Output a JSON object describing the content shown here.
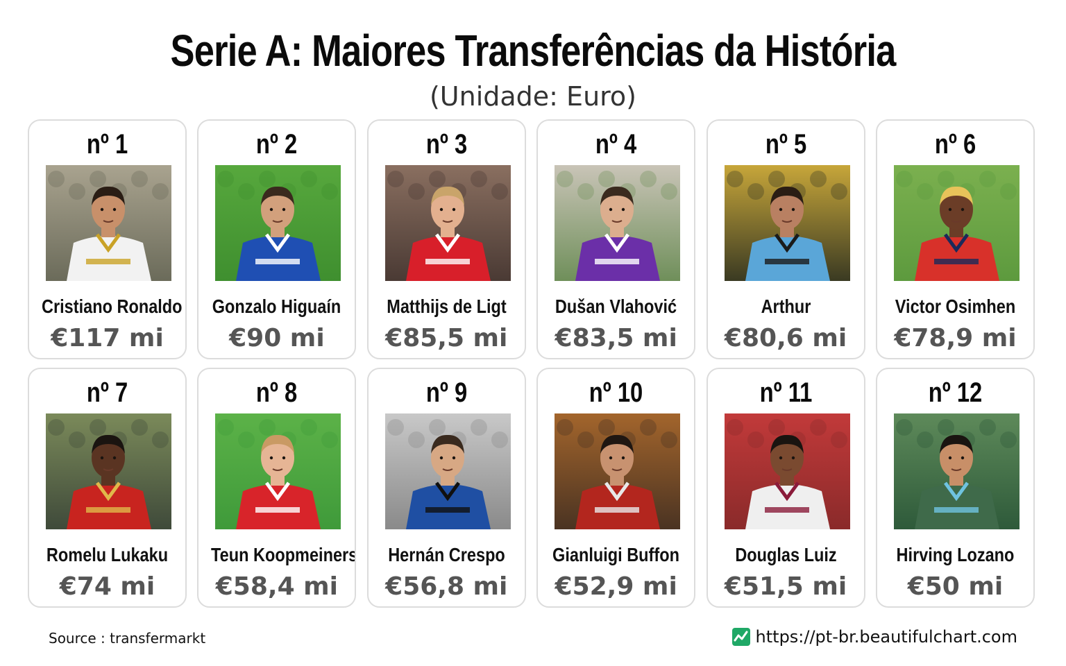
{
  "title": "Serie A: Maiores Transferências da História",
  "subtitle": "(Unidade: Euro)",
  "cards": [
    {
      "rank": "nº 1",
      "name": "Cristiano Ronaldo",
      "value": "€117 mi",
      "jersey": "#f2f2f2",
      "trim": "#c9a227",
      "skin": "#c8906a",
      "hair": "#2a1d14",
      "bg": "#6b6b5a",
      "bg2": "#a9a38f"
    },
    {
      "rank": "nº 2",
      "name": "Gonzalo Higuaín",
      "value": "€90 mi",
      "jersey": "#1f4fb3",
      "trim": "#ffffff",
      "skin": "#d2a07c",
      "hair": "#3a2a1e",
      "bg": "#3f8f2f",
      "bg2": "#57a83d"
    },
    {
      "rank": "nº 3",
      "name": "Matthijs de Ligt",
      "value": "€85,5 mi",
      "jersey": "#d81f2a",
      "trim": "#ffffff",
      "skin": "#e3b08f",
      "hair": "#c9a46a",
      "bg": "#4a3a34",
      "bg2": "#8a6f60"
    },
    {
      "rank": "nº 4",
      "name": "Dušan Vlahović",
      "value": "€83,5 mi",
      "jersey": "#6b2fa8",
      "trim": "#ffffff",
      "skin": "#dcae8e",
      "hair": "#3a2a1e",
      "bg": "#6f8f5a",
      "bg2": "#c9c4b7"
    },
    {
      "rank": "nº 5",
      "name": "Arthur",
      "value": "€80,6 mi",
      "jersey": "#5aa6d8",
      "trim": "#1b1b1b",
      "skin": "#b98062",
      "hair": "#2a1d14",
      "bg": "#3a3a22",
      "bg2": "#c7a63a"
    },
    {
      "rank": "nº 6",
      "name": "Victor Osimhen",
      "value": "€78,9 mi",
      "jersey": "#d8312a",
      "trim": "#1a2a5a",
      "skin": "#6b3d27",
      "hair": "#e8c35a",
      "bg": "#5d9a3e",
      "bg2": "#7bb04f"
    },
    {
      "rank": "nº 7",
      "name": "Romelu Lukaku",
      "value": "€74 mi",
      "jersey": "#c8241f",
      "trim": "#e1b84a",
      "skin": "#5a3422",
      "hair": "#1a1410",
      "bg": "#3f4a3a",
      "bg2": "#7b8a5a"
    },
    {
      "rank": "nº 8",
      "name": "Teun Koopmeiners",
      "value": "€58,4 mi",
      "jersey": "#d8242a",
      "trim": "#ffffff",
      "skin": "#e6b595",
      "hair": "#c99a64",
      "bg": "#3f9a3a",
      "bg2": "#5cb248"
    },
    {
      "rank": "nº 9",
      "name": "Hernán Crespo",
      "value": "€56,8 mi",
      "jersey": "#1f4fa3",
      "trim": "#101010",
      "skin": "#d7a884",
      "hair": "#3a2a1e",
      "bg": "#8a8a8a",
      "bg2": "#c8c8c8"
    },
    {
      "rank": "nº 10",
      "name": "Gianluigi Buffon",
      "value": "€52,9 mi",
      "jersey": "#b3261e",
      "trim": "#e8e8e8",
      "skin": "#c89270",
      "hair": "#1f1712",
      "bg": "#4a3322",
      "bg2": "#a3652c"
    },
    {
      "rank": "nº 11",
      "name": "Douglas Luiz",
      "value": "€51,5 mi",
      "jersey": "#efefef",
      "trim": "#8a1b3a",
      "skin": "#7a4a30",
      "hair": "#1a1410",
      "bg": "#8a2a2a",
      "bg2": "#c23a3a"
    },
    {
      "rank": "nº 12",
      "name": "Hirving Lozano",
      "value": "€50 mi",
      "jersey": "#3f6a4a",
      "trim": "#6fc3e0",
      "skin": "#c88f68",
      "hair": "#1a1410",
      "bg": "#2e5a3a",
      "bg2": "#5e8a5a"
    }
  ],
  "footer": {
    "source": "Source : transfermarkt",
    "brand_url": "https://pt-br.beautifulchart.com",
    "brand_icon": "chart-line-icon",
    "brand_color": "#1fa866"
  }
}
